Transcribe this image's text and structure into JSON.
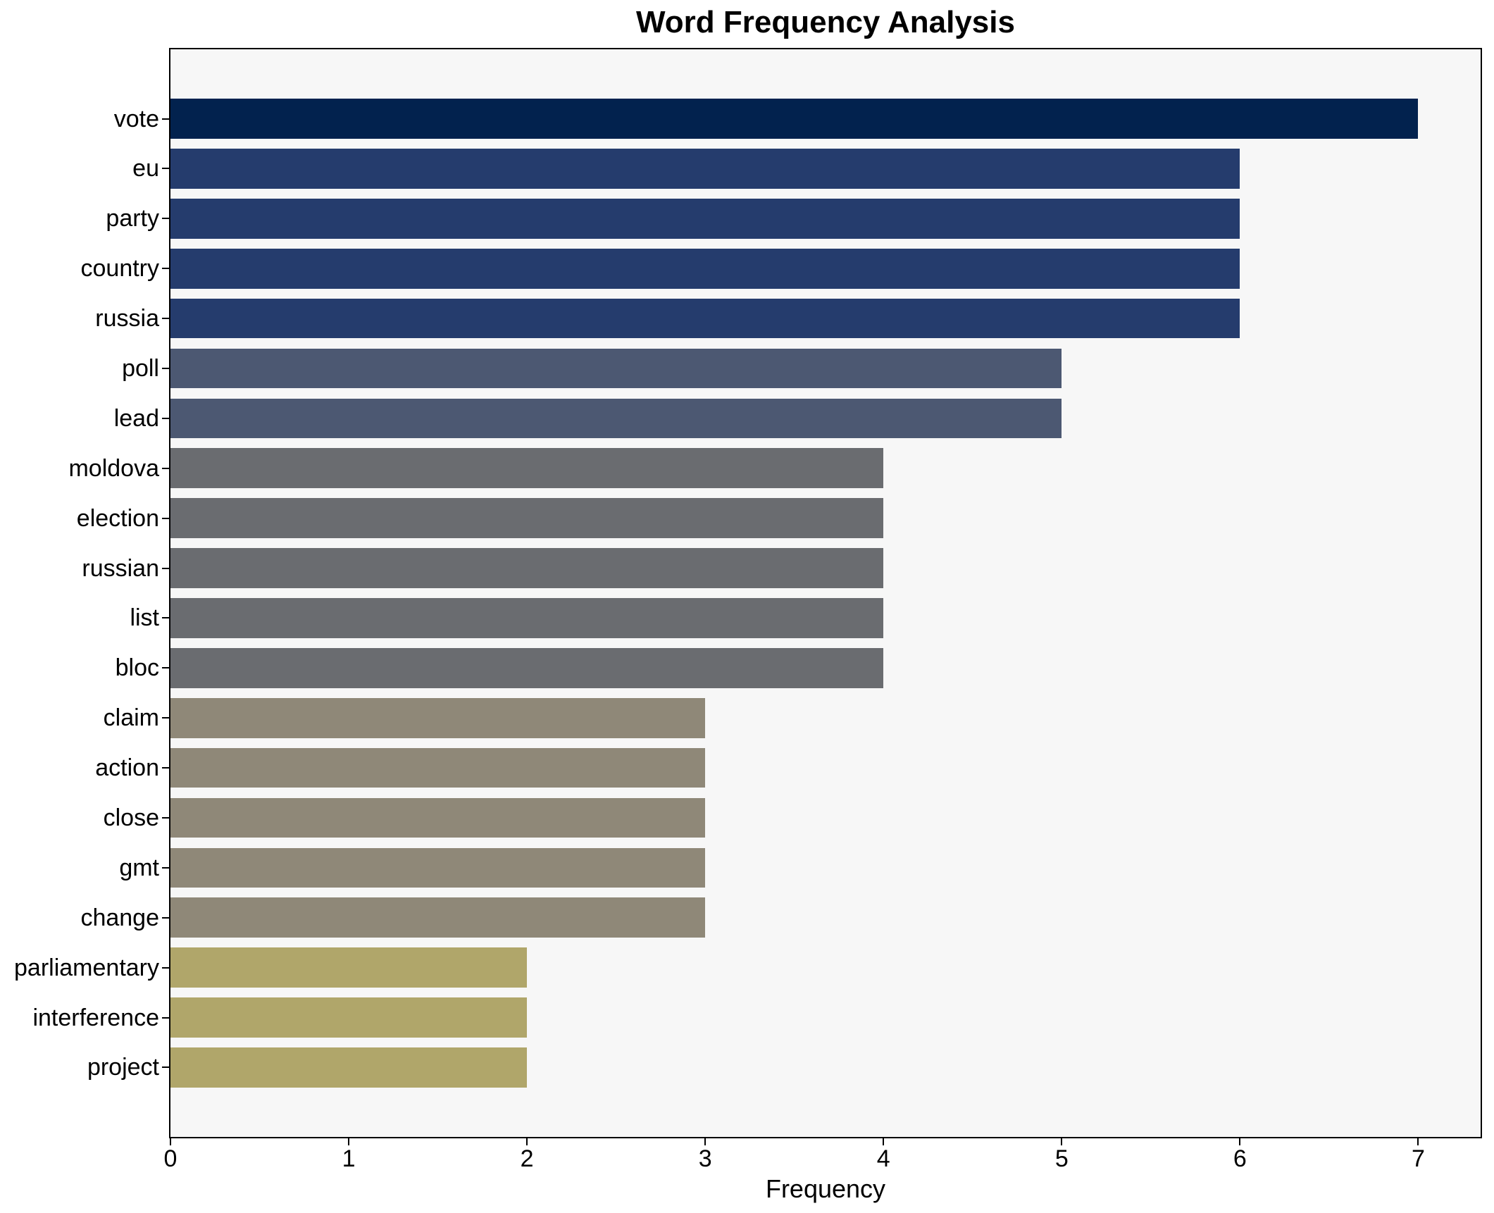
{
  "chart_data": {
    "type": "bar",
    "orientation": "horizontal",
    "title": "Word Frequency Analysis",
    "xlabel": "Frequency",
    "ylabel": "",
    "categories": [
      "vote",
      "eu",
      "party",
      "country",
      "russia",
      "poll",
      "lead",
      "moldova",
      "election",
      "russian",
      "list",
      "bloc",
      "claim",
      "action",
      "close",
      "gmt",
      "change",
      "parliamentary",
      "interference",
      "project"
    ],
    "values": [
      7,
      6,
      6,
      6,
      6,
      5,
      5,
      4,
      4,
      4,
      4,
      4,
      3,
      3,
      3,
      3,
      3,
      2,
      2,
      2
    ],
    "bar_colors": [
      "#02224e",
      "#253c6d",
      "#253c6d",
      "#253c6d",
      "#253c6d",
      "#4c5872",
      "#4c5872",
      "#6a6c70",
      "#6a6c70",
      "#6a6c70",
      "#6a6c70",
      "#6a6c70",
      "#8f8878",
      "#8f8878",
      "#8f8878",
      "#8f8878",
      "#8f8878",
      "#b0a66a",
      "#b0a66a",
      "#b0a66a"
    ],
    "value_color_map": {
      "7": "#02224e",
      "6": "#253c6d",
      "5": "#4c5872",
      "4": "#6a6c70",
      "3": "#8f8878",
      "2": "#b0a66a"
    },
    "xlim": [
      0,
      7.35
    ],
    "x_ticks": [
      "0",
      "1",
      "2",
      "3",
      "4",
      "5",
      "6",
      "7"
    ],
    "grid": false,
    "legend": null,
    "bar_height_fraction": 0.8,
    "plot_background": "#f7f7f7",
    "figure_background": "#ffffff",
    "spine_color": "#000000",
    "text_color": "#000000"
  }
}
